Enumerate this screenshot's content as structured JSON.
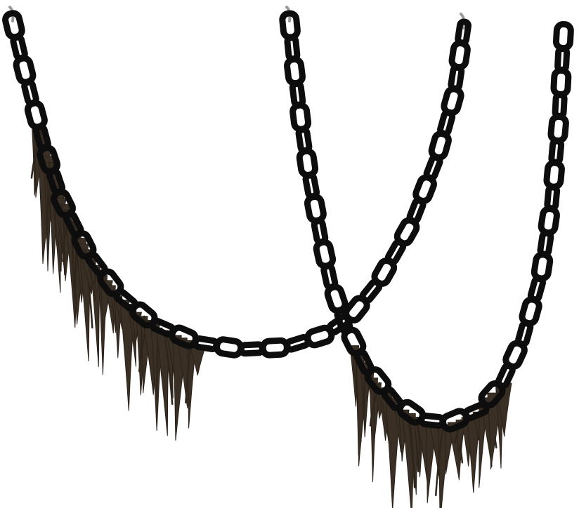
{
  "scene": {
    "subject": "hanging-chains-with-moss",
    "background_color": "#ffffff",
    "chain_color": "#0d0d0d",
    "moss_color": "#3a2f24",
    "hook_color": "#9a9a9a",
    "chains": [
      {
        "name": "left-drooping-chain",
        "has_moss": true
      },
      {
        "name": "right-drooping-chain",
        "has_moss": true
      }
    ]
  }
}
